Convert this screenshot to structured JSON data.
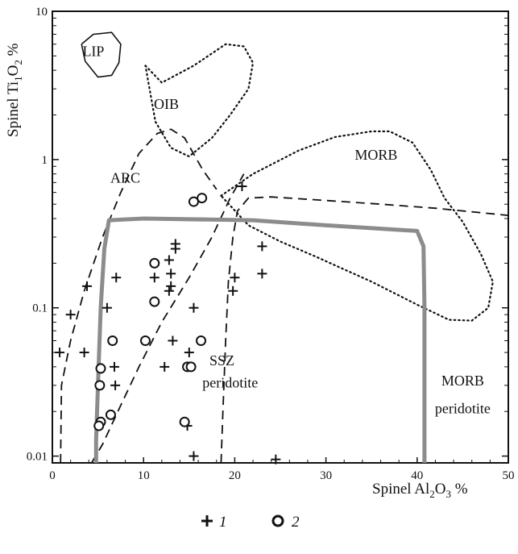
{
  "chart_data": {
    "type": "scatter",
    "x_axis": {
      "label_parts": [
        "Spinel Al",
        "2",
        "O",
        "3",
        " %"
      ],
      "min": 0,
      "max": 50,
      "scale": "linear",
      "ticks": [
        0,
        10,
        20,
        30,
        40,
        50
      ],
      "tick_labels": [
        "0",
        "10",
        "20",
        "30",
        "40",
        "50"
      ]
    },
    "y_axis": {
      "label_parts": [
        "Spinel Ti",
        "1",
        "O",
        "2",
        " %"
      ],
      "min": 0.009,
      "max": 10,
      "scale": "log",
      "ticks": [
        0.01,
        0.1,
        1,
        10
      ],
      "tick_labels": [
        "0.01",
        "0.1",
        "1",
        "10"
      ]
    },
    "grid": false,
    "legend": {
      "placement": "bottom-center",
      "items": [
        {
          "marker": "plus",
          "label": "1"
        },
        {
          "marker": "circle",
          "label": "2"
        }
      ]
    },
    "region_labels": [
      {
        "text": "LIP",
        "x": 4.5,
        "y": 5.0
      },
      {
        "text": "OIB",
        "x": 12.5,
        "y": 2.2
      },
      {
        "text": "MORB",
        "x": 35.5,
        "y": 1.0
      },
      {
        "text": "ARC",
        "x": 8.0,
        "y": 0.7
      },
      {
        "text": "SSZ",
        "x": 18.6,
        "y": 0.041
      },
      {
        "text": "peridotite",
        "x": 19.5,
        "y": 0.029
      },
      {
        "text": "MORB",
        "x": 45.0,
        "y": 0.03
      },
      {
        "text": "peridotite",
        "x": 45.0,
        "y": 0.0195
      }
    ],
    "fields": [
      {
        "name": "LIP",
        "style": "solid",
        "points": [
          [
            3.2,
            6.0
          ],
          [
            4.5,
            7.0
          ],
          [
            6.5,
            7.2
          ],
          [
            7.5,
            6.0
          ],
          [
            7.3,
            4.5
          ],
          [
            6.5,
            3.7
          ],
          [
            5.0,
            3.6
          ],
          [
            3.6,
            4.6
          ],
          [
            3.2,
            6.0
          ]
        ]
      },
      {
        "name": "OIB",
        "style": "dotted",
        "points": [
          [
            10.2,
            4.3
          ],
          [
            12.0,
            3.3
          ],
          [
            15.5,
            4.3
          ],
          [
            19.0,
            6.0
          ],
          [
            21.0,
            5.8
          ],
          [
            22.0,
            4.5
          ],
          [
            21.5,
            3.0
          ],
          [
            19.5,
            2.0
          ],
          [
            17.5,
            1.4
          ],
          [
            15.0,
            1.05
          ],
          [
            13.0,
            1.2
          ],
          [
            11.3,
            1.8
          ],
          [
            10.2,
            4.3
          ]
        ]
      },
      {
        "name": "MORB",
        "style": "dotted",
        "points": [
          [
            18.5,
            0.57
          ],
          [
            22.0,
            0.8
          ],
          [
            27.0,
            1.15
          ],
          [
            31.0,
            1.42
          ],
          [
            35.0,
            1.55
          ],
          [
            37.0,
            1.55
          ],
          [
            39.5,
            1.3
          ],
          [
            41.5,
            0.85
          ],
          [
            43.0,
            0.55
          ],
          [
            45.0,
            0.38
          ],
          [
            47.0,
            0.23
          ],
          [
            48.3,
            0.15
          ],
          [
            47.8,
            0.1
          ],
          [
            46.0,
            0.082
          ],
          [
            43.5,
            0.083
          ],
          [
            40.0,
            0.105
          ],
          [
            35.0,
            0.15
          ],
          [
            29.0,
            0.22
          ],
          [
            25.0,
            0.28
          ],
          [
            21.5,
            0.36
          ],
          [
            18.5,
            0.57
          ]
        ]
      },
      {
        "name": "ARC-outer",
        "style": "dashed",
        "points": [
          [
            0.9,
            0.009
          ],
          [
            1.0,
            0.03
          ],
          [
            2.0,
            0.06
          ],
          [
            3.5,
            0.13
          ],
          [
            5.5,
            0.3
          ],
          [
            7.5,
            0.6
          ],
          [
            9.5,
            1.1
          ],
          [
            11.5,
            1.5
          ],
          [
            13.0,
            1.6
          ],
          [
            14.5,
            1.4
          ],
          [
            16.5,
            0.85
          ],
          [
            18.0,
            0.63
          ]
        ]
      },
      {
        "name": "ARC-inner",
        "style": "dashed",
        "points": [
          [
            4.3,
            0.009
          ],
          [
            5.5,
            0.012
          ],
          [
            7.5,
            0.022
          ],
          [
            9.5,
            0.04
          ],
          [
            12.0,
            0.08
          ],
          [
            15.0,
            0.16
          ],
          [
            17.5,
            0.3
          ],
          [
            19.5,
            0.55
          ],
          [
            21.0,
            0.8
          ]
        ]
      },
      {
        "name": "SSZ",
        "style": "dashed",
        "points": [
          [
            18.5,
            0.009
          ],
          [
            18.7,
            0.02
          ],
          [
            19.0,
            0.06
          ],
          [
            19.3,
            0.15
          ],
          [
            19.8,
            0.3
          ],
          [
            20.3,
            0.45
          ],
          [
            21.5,
            0.55
          ],
          [
            24.0,
            0.56
          ],
          [
            30.0,
            0.53
          ],
          [
            36.0,
            0.5
          ],
          [
            42.0,
            0.47
          ],
          [
            50.0,
            0.42
          ]
        ]
      },
      {
        "name": "MORB-peridotite",
        "style": "solid-gray",
        "points": [
          [
            4.8,
            0.009
          ],
          [
            4.8,
            0.013
          ],
          [
            5.0,
            0.03
          ],
          [
            5.3,
            0.1
          ],
          [
            5.7,
            0.25
          ],
          [
            6.2,
            0.39
          ],
          [
            10.0,
            0.4
          ],
          [
            22.0,
            0.39
          ],
          [
            30.0,
            0.36
          ],
          [
            40.0,
            0.33
          ],
          [
            40.7,
            0.26
          ],
          [
            40.8,
            0.1
          ],
          [
            40.8,
            0.009
          ]
        ]
      }
    ],
    "series": [
      {
        "name": "1",
        "marker": "plus",
        "points": [
          [
            0.8,
            0.05
          ],
          [
            2.0,
            0.09
          ],
          [
            3.5,
            0.05
          ],
          [
            3.8,
            0.14
          ],
          [
            6.0,
            0.1
          ],
          [
            6.8,
            0.04
          ],
          [
            7.0,
            0.16
          ],
          [
            6.9,
            0.03
          ],
          [
            11.2,
            0.16
          ],
          [
            12.8,
            0.21
          ],
          [
            13.0,
            0.17
          ],
          [
            13.5,
            0.27
          ],
          [
            13.5,
            0.25
          ],
          [
            13.0,
            0.14
          ],
          [
            12.8,
            0.13
          ],
          [
            13.2,
            0.06
          ],
          [
            12.3,
            0.04
          ],
          [
            15.5,
            0.1
          ],
          [
            15.0,
            0.05
          ],
          [
            15.0,
            0.04
          ],
          [
            14.8,
            0.016
          ],
          [
            15.5,
            0.01
          ],
          [
            20.0,
            0.16
          ],
          [
            19.8,
            0.13
          ],
          [
            20.8,
            0.66
          ],
          [
            23.0,
            0.26
          ],
          [
            23.0,
            0.17
          ],
          [
            24.5,
            0.0095
          ]
        ]
      },
      {
        "name": "2",
        "marker": "circle",
        "points": [
          [
            5.3,
            0.039
          ],
          [
            5.2,
            0.03
          ],
          [
            5.3,
            0.017
          ],
          [
            5.1,
            0.016
          ],
          [
            6.6,
            0.06
          ],
          [
            6.4,
            0.019
          ],
          [
            11.2,
            0.11
          ],
          [
            11.2,
            0.2
          ],
          [
            10.2,
            0.06
          ],
          [
            14.8,
            0.04
          ],
          [
            15.2,
            0.04
          ],
          [
            16.3,
            0.06
          ],
          [
            14.5,
            0.017
          ],
          [
            15.5,
            0.52
          ],
          [
            16.4,
            0.55
          ]
        ]
      }
    ]
  }
}
